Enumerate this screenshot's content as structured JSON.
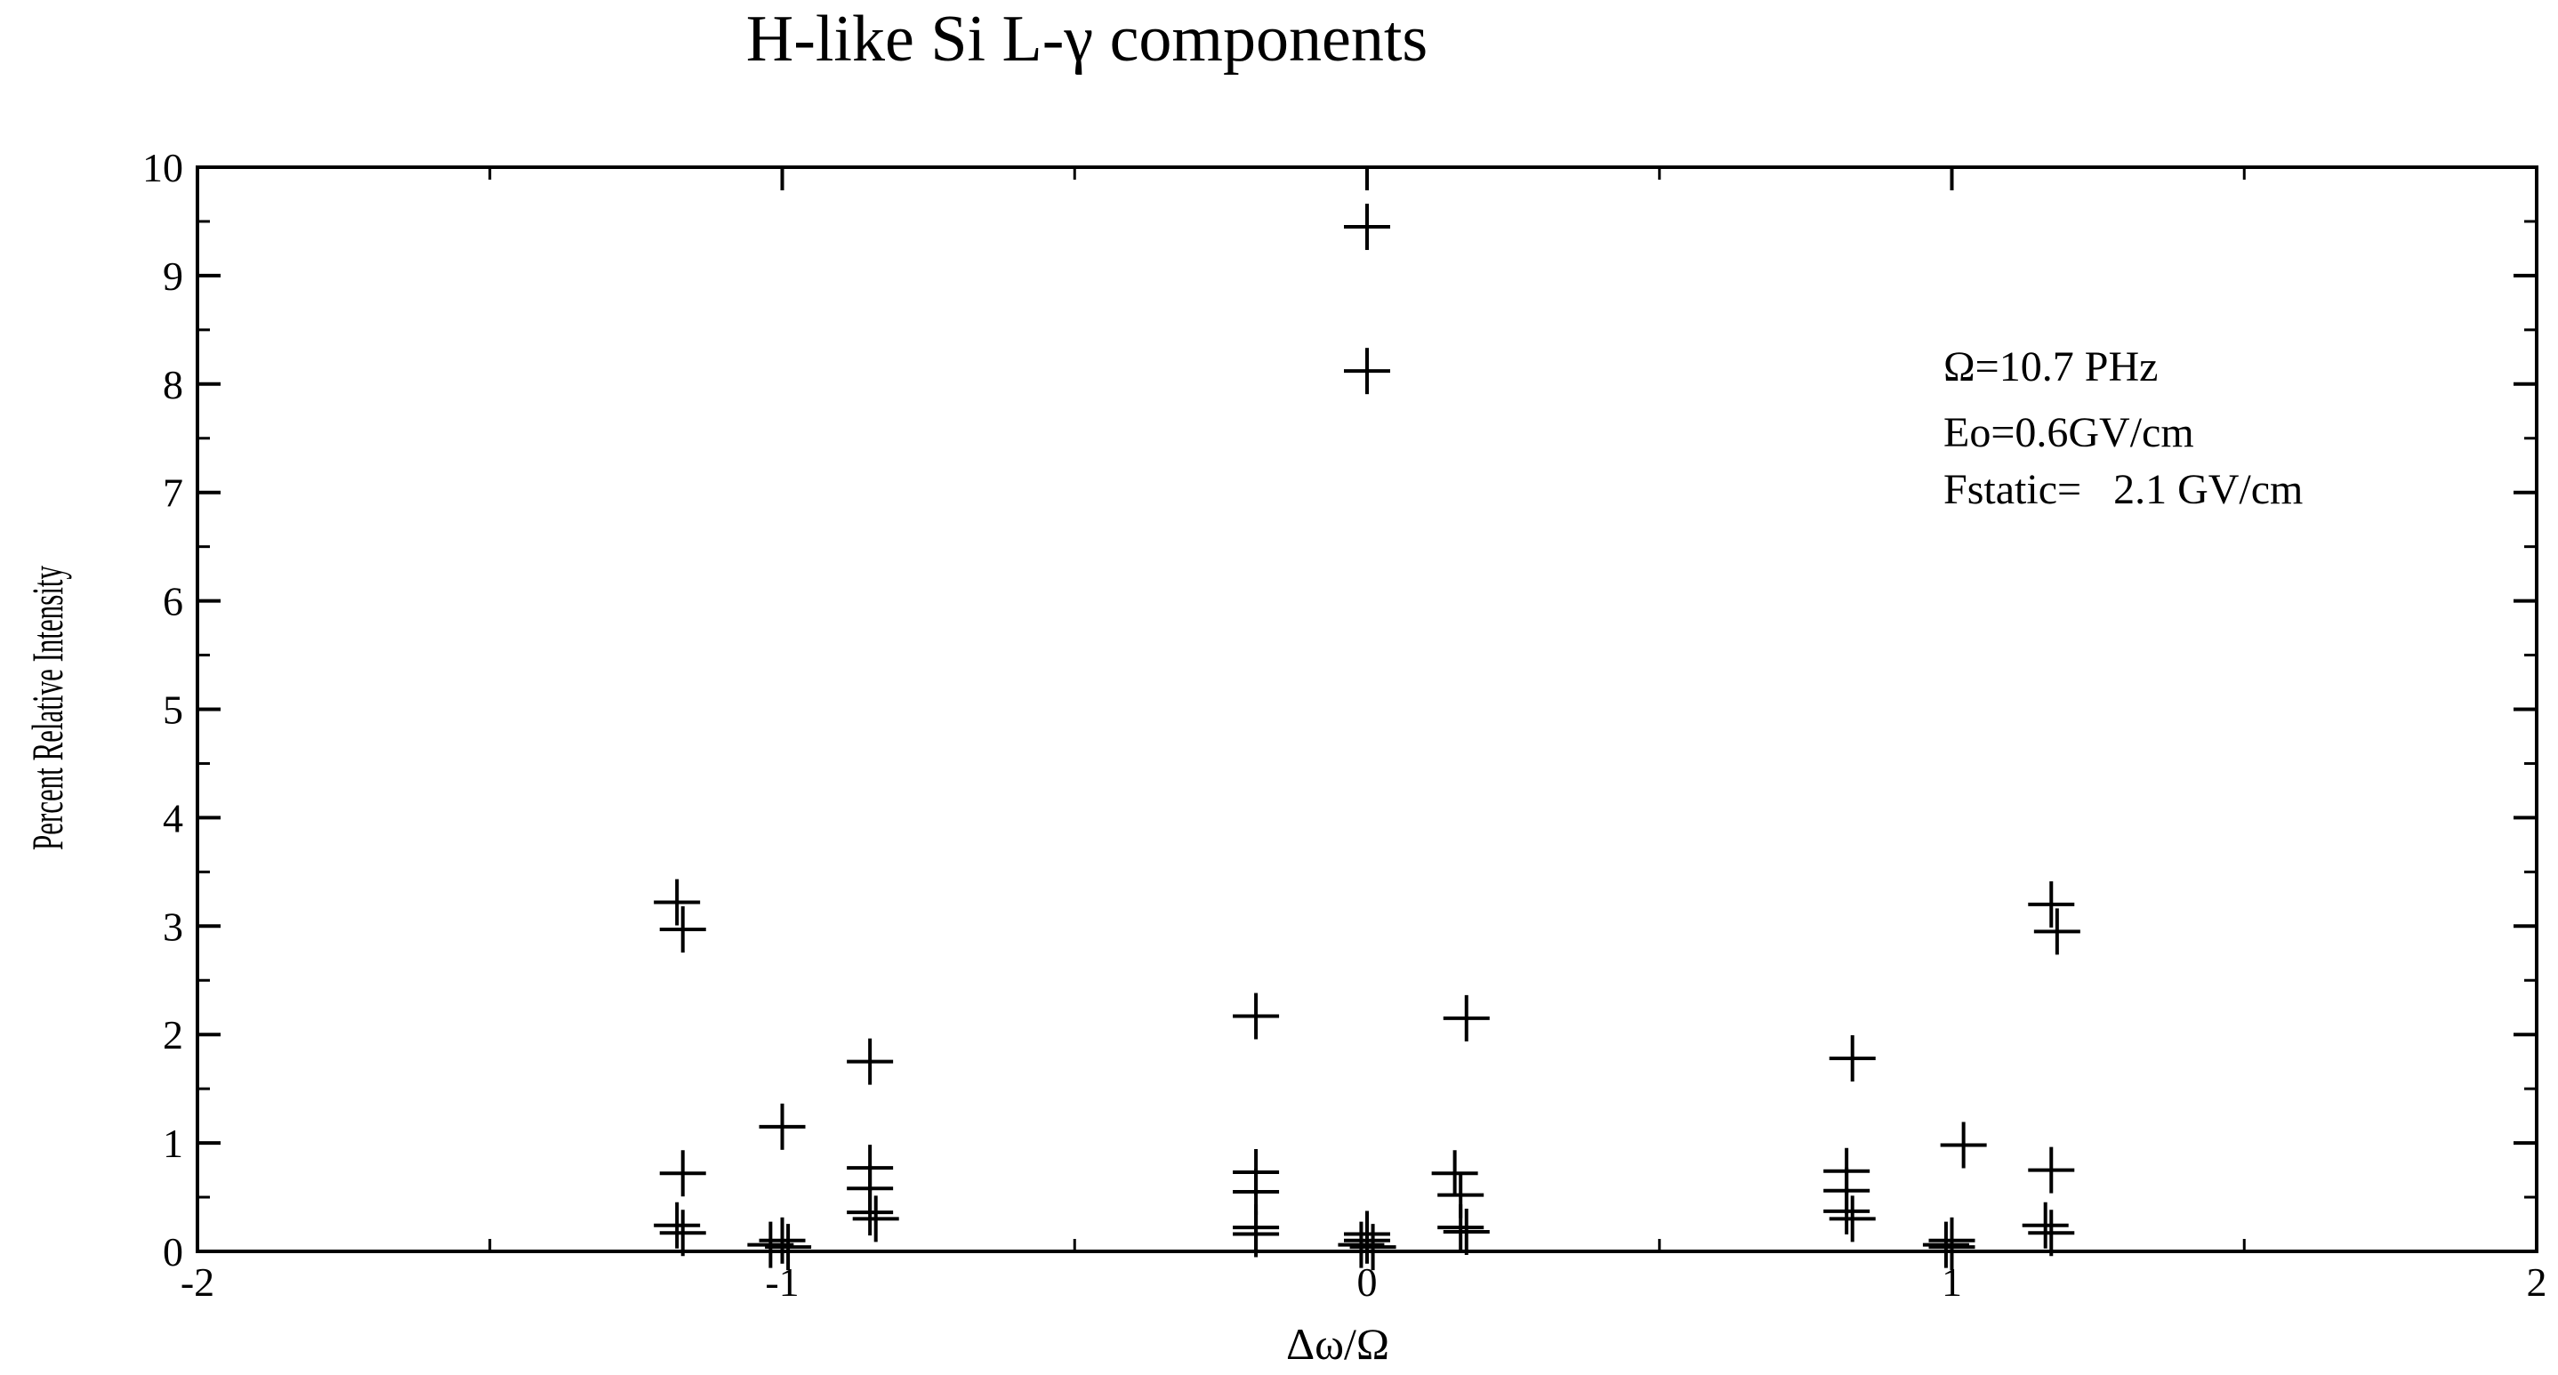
{
  "chart_data": {
    "type": "scatter",
    "title": "H-like Si L-γ   components",
    "xlabel": "Δω/Ω",
    "ylabel": "Percent Relative Intensity",
    "xlim": [
      -2,
      2
    ],
    "ylim": [
      0,
      10
    ],
    "x_ticks": [
      -2,
      -1,
      0,
      1,
      2
    ],
    "y_ticks": [
      0,
      1,
      2,
      3,
      4,
      5,
      6,
      7,
      8,
      9,
      10
    ],
    "grid": false,
    "marker": "plus",
    "annotations": [
      "Ω=10.7 PHz",
      "Eo=0.6GV/cm",
      "Fstatic=   2.1 GV/cm"
    ],
    "points": [
      {
        "x": -1.18,
        "y": 3.22
      },
      {
        "x": -1.17,
        "y": 2.97
      },
      {
        "x": -1.17,
        "y": 0.72
      },
      {
        "x": -1.18,
        "y": 0.24
      },
      {
        "x": -1.17,
        "y": 0.17
      },
      {
        "x": -1.0,
        "y": 1.15
      },
      {
        "x": -1.0,
        "y": 0.1
      },
      {
        "x": -1.02,
        "y": 0.06
      },
      {
        "x": -0.99,
        "y": 0.04
      },
      {
        "x": -0.85,
        "y": 1.75
      },
      {
        "x": -0.85,
        "y": 0.77
      },
      {
        "x": -0.85,
        "y": 0.58
      },
      {
        "x": -0.85,
        "y": 0.36
      },
      {
        "x": -0.84,
        "y": 0.3
      },
      {
        "x": -0.19,
        "y": 2.17
      },
      {
        "x": -0.19,
        "y": 0.73
      },
      {
        "x": -0.19,
        "y": 0.55
      },
      {
        "x": -0.19,
        "y": 0.22
      },
      {
        "x": -0.19,
        "y": 0.16
      },
      {
        "x": 0.0,
        "y": 9.45
      },
      {
        "x": 0.0,
        "y": 8.12
      },
      {
        "x": 0.0,
        "y": 0.16
      },
      {
        "x": 0.0,
        "y": 0.1
      },
      {
        "x": -0.01,
        "y": 0.06
      },
      {
        "x": 0.01,
        "y": 0.04
      },
      {
        "x": 0.17,
        "y": 2.15
      },
      {
        "x": 0.15,
        "y": 0.72
      },
      {
        "x": 0.16,
        "y": 0.52
      },
      {
        "x": 0.16,
        "y": 0.22
      },
      {
        "x": 0.17,
        "y": 0.18
      },
      {
        "x": 0.83,
        "y": 1.78
      },
      {
        "x": 0.82,
        "y": 0.74
      },
      {
        "x": 0.82,
        "y": 0.56
      },
      {
        "x": 0.82,
        "y": 0.37
      },
      {
        "x": 0.83,
        "y": 0.3
      },
      {
        "x": 1.02,
        "y": 0.98
      },
      {
        "x": 1.0,
        "y": 0.1
      },
      {
        "x": 0.99,
        "y": 0.06
      },
      {
        "x": 1.0,
        "y": 0.04
      },
      {
        "x": 1.17,
        "y": 3.2
      },
      {
        "x": 1.18,
        "y": 2.95
      },
      {
        "x": 1.17,
        "y": 0.75
      },
      {
        "x": 1.16,
        "y": 0.24
      },
      {
        "x": 1.17,
        "y": 0.17
      }
    ]
  }
}
